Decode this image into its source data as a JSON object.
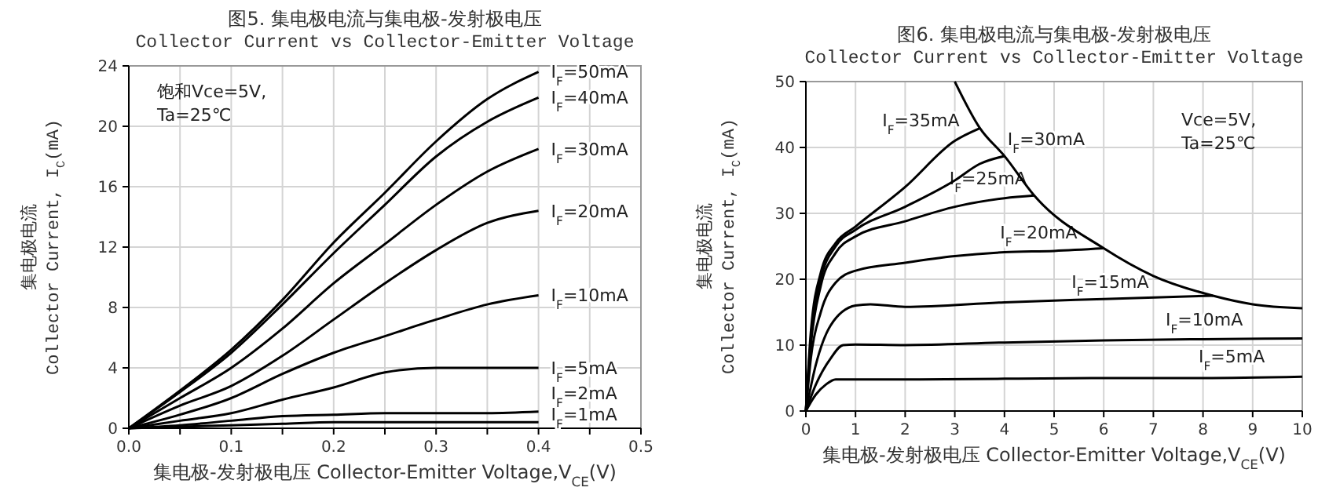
{
  "chart_data": [
    {
      "type": "line",
      "title": "图5. 集电极电流与集电极-发射极电压",
      "subtitle": "Collector Current vs Collector-Emitter Voltage",
      "xlabel": "集电极-发射极电压 Collector-Emitter Voltage,V$_{CE}$(V)",
      "ylabel": "集电极电流\nCollector Current, I$_{C}$(mA)",
      "x": [
        0,
        0.05,
        0.1,
        0.15,
        0.2,
        0.25,
        0.3,
        0.35,
        0.4
      ],
      "xlim": [
        0,
        0.5
      ],
      "ylim": [
        0,
        24
      ],
      "xticks": [
        {
          "value": 0,
          "label": "0.0"
        },
        {
          "value": 0.05,
          "label": null
        },
        {
          "value": 0.1,
          "label": "0.1"
        },
        {
          "value": 0.15,
          "label": null
        },
        {
          "value": 0.2,
          "label": "0.2"
        },
        {
          "value": 0.25,
          "label": null
        },
        {
          "value": 0.3,
          "label": "0.3"
        },
        {
          "value": 0.35,
          "label": null
        },
        {
          "value": 0.4,
          "label": "0.4"
        },
        {
          "value": 0.45,
          "label": null
        },
        {
          "value": 0.5,
          "label": "0.5"
        }
      ],
      "yticks": [
        0,
        4,
        8,
        12,
        16,
        20,
        24
      ],
      "grid": true,
      "legend": false,
      "marker": "none",
      "line_style": "solid",
      "annotations": [
        "饱和Vce=5V,\nTa=25℃"
      ],
      "series": [
        {
          "name": "I$_{F}$=50mA",
          "color": "#000000",
          "values": [
            0,
            2.5,
            5.2,
            8.5,
            12.3,
            15.6,
            19,
            21.8,
            23.6
          ]
        },
        {
          "name": "I$_{F}$=40mA",
          "color": "#000000",
          "values": [
            0,
            2.4,
            5,
            8.2,
            11.6,
            14.8,
            18,
            20.3,
            21.9
          ]
        },
        {
          "name": "I$_{F}$=30mA",
          "color": "#000000",
          "values": [
            0,
            2,
            4,
            6.6,
            9.6,
            12.2,
            14.8,
            17,
            18.5
          ]
        },
        {
          "name": "I$_{F}$=20mA",
          "color": "#000000",
          "values": [
            0,
            1.5,
            2.8,
            4.8,
            7.2,
            9.6,
            11.8,
            13.6,
            14.4
          ]
        },
        {
          "name": "I$_{F}$=10mA",
          "color": "#000000",
          "values": [
            0,
            0.9,
            2,
            3.6,
            5,
            6.1,
            7.2,
            8.2,
            8.8
          ]
        },
        {
          "name": "I$_{F}$=5mA",
          "color": "#000000",
          "values": [
            0,
            0.5,
            1,
            1.9,
            2.7,
            3.7,
            4,
            4,
            4
          ]
        },
        {
          "name": "I$_{F}$=2mA",
          "color": "#000000",
          "values": [
            0,
            0.2,
            0.5,
            0.8,
            0.9,
            1,
            1,
            1,
            1.1
          ]
        },
        {
          "name": "I$_{F}$=1mA",
          "color": "#000000",
          "values": [
            0,
            0.1,
            0.2,
            0.3,
            0.4,
            0.4,
            0.4,
            0.4,
            0.4
          ]
        }
      ]
    },
    {
      "type": "line",
      "title": "图6. 集电极电流与集电极-发射极电压",
      "subtitle": "Collector Current vs Collector-Emitter Voltage",
      "xlabel": "集电极-发射极电压 Collector-Emitter Voltage,V$_{CE}$(V)",
      "ylabel": "集电极电流\nCollector Current, I$_{C}$(mA)",
      "xlim": [
        0,
        10
      ],
      "ylim": [
        0,
        50
      ],
      "xticks": [
        0,
        1,
        2,
        3,
        4,
        5,
        6,
        7,
        8,
        9,
        10
      ],
      "yticks": [
        0,
        10,
        20,
        30,
        40,
        50
      ],
      "grid": true,
      "legend": false,
      "marker": "none",
      "line_style": "solid",
      "annotations": [
        "Vce=5V,\nTa=25℃"
      ],
      "series": [
        {
          "name": "I$_{F}$=5mA",
          "color": "#000000",
          "x": [
            0,
            0.2,
            0.4,
            0.6,
            1,
            2,
            4,
            6,
            8,
            10
          ],
          "values": [
            0,
            2.5,
            4,
            4.8,
            4.8,
            4.8,
            4.9,
            5,
            5,
            5.2
          ]
        },
        {
          "name": "I$_{F}$=10mA",
          "color": "#000000",
          "x": [
            0,
            0.2,
            0.5,
            0.75,
            1,
            2,
            4,
            6,
            8,
            10
          ],
          "values": [
            0,
            4,
            8,
            10,
            10.1,
            10,
            10.4,
            10.7,
            10.9,
            11
          ]
        },
        {
          "name": "I$_{F}$=15mA",
          "color": "#000000",
          "x": [
            0,
            0.2,
            0.5,
            1,
            1.3,
            2,
            4,
            6,
            8.2
          ],
          "values": [
            0,
            7,
            13,
            16,
            16.2,
            15.8,
            16.5,
            17,
            17.5
          ]
        },
        {
          "name": "I$_{F}$=20mA",
          "color": "#000000",
          "x": [
            0,
            0.1,
            0.3,
            0.6,
            1,
            2,
            3,
            4,
            5,
            6
          ],
          "values": [
            0,
            8,
            15,
            19.5,
            21.3,
            22.5,
            23.5,
            24.1,
            24.3,
            24.7
          ]
        },
        {
          "name": "I$_{F}$=25mA",
          "color": "#000000",
          "x": [
            0,
            0.1,
            0.3,
            0.6,
            1,
            2,
            3,
            4,
            4.6
          ],
          "values": [
            0,
            10,
            19,
            24,
            26.5,
            28.8,
            31,
            32.3,
            32.7
          ]
        },
        {
          "name": "I$_{F}$=30mA",
          "color": "#000000",
          "x": [
            0,
            0.1,
            0.3,
            0.6,
            1,
            2,
            3,
            3.5,
            4
          ],
          "values": [
            0,
            11,
            20,
            25,
            27.5,
            31,
            35,
            37.5,
            38.7
          ]
        },
        {
          "name": "I$_{F}$=35mA",
          "color": "#000000",
          "x": [
            0,
            0.1,
            0.3,
            0.6,
            1,
            2,
            3,
            3.5
          ],
          "values": [
            0,
            12,
            21,
            25.5,
            28,
            34,
            41,
            42.9
          ]
        },
        {
          "color": "#000000",
          "x": [
            3,
            3.5,
            4,
            4.6,
            6,
            7,
            8.2,
            9,
            10
          ],
          "values": [
            50,
            43,
            38.7,
            32.7,
            24.7,
            20.5,
            17.5,
            16.2,
            15.6
          ]
        }
      ]
    }
  ]
}
